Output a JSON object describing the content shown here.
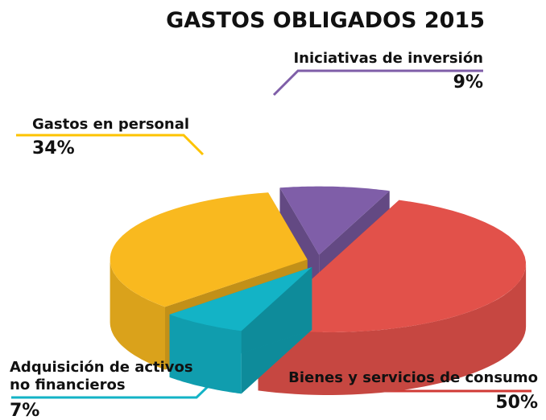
{
  "chart_data": {
    "type": "pie",
    "title": "GASTOS OBLIGADOS 2015",
    "categories": [
      "Iniciativas de inversión",
      "Bienes y servicios de consumo",
      "Adquisición de activos no financieros",
      "Gastos en personal"
    ],
    "values": [
      9,
      50,
      7,
      34
    ],
    "value_labels": [
      "9%",
      "50%",
      "7%",
      "34%"
    ],
    "colors": [
      "#7f5ea8",
      "#e2514a",
      "#13b3c6",
      "#f9b91f"
    ]
  }
}
